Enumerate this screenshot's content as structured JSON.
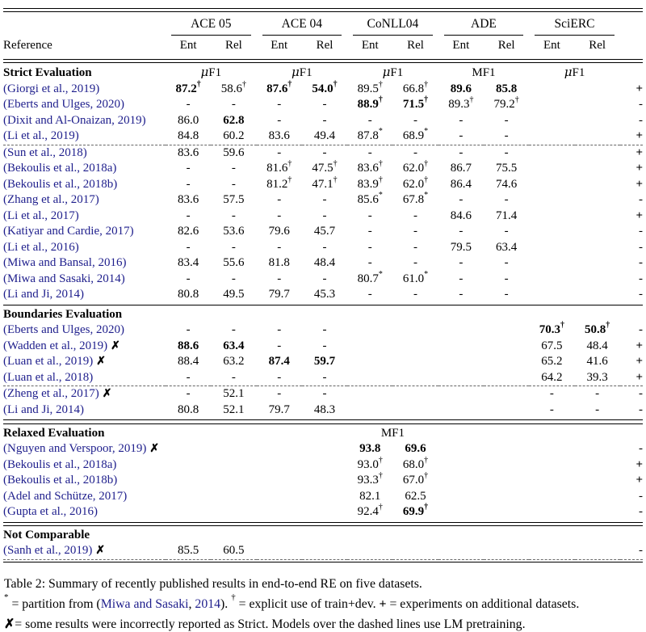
{
  "colors": {
    "citation_blue": "#1e1e8c",
    "dash_gray": "#666666",
    "rule_black": "#000000",
    "background": "#ffffff"
  },
  "table": {
    "header": {
      "reference_label": "Reference",
      "groups": [
        "ACE 05",
        "ACE 04",
        "CoNLL04",
        "ADE",
        "SciERC"
      ],
      "subcols": [
        "Ent",
        "Rel"
      ]
    },
    "sections": [
      {
        "title": "Strict Evaluation",
        "f1_labels": [
          "μF1",
          "μF1",
          "μF1",
          "MF1",
          "μF1"
        ],
        "dashed_after": 3,
        "rule_after": "single",
        "rows": [
          {
            "ref": "(Giorgi et al., 2019)",
            "x": false,
            "c": [
              "!87.2^†",
              "58.6^†",
              "!87.6^†",
              "!54.0^†",
              "89.5^†",
              "66.8^†",
              "!89.6",
              "!85.8",
              "",
              ""
            ],
            "s": "+"
          },
          {
            "ref": "(Eberts and Ulges, 2020)",
            "x": false,
            "c": [
              "-",
              "-",
              "-",
              "-",
              "!88.9^†",
              "!71.5^†",
              "89.3^†",
              "79.2^†",
              "",
              ""
            ],
            "s": "-"
          },
          {
            "ref": "(Dixit and Al-Onaizan, 2019)",
            "x": false,
            "c": [
              "86.0",
              "!62.8",
              "-",
              "-",
              "-",
              "-",
              "-",
              "-",
              "",
              ""
            ],
            "s": "-"
          },
          {
            "ref": "(Li et al., 2019)",
            "x": false,
            "c": [
              "84.8",
              "60.2",
              "83.6",
              "49.4",
              "87.8^*",
              "68.9^*",
              "-",
              "-",
              "",
              ""
            ],
            "s": "+"
          },
          {
            "ref": "(Sun et al., 2018)",
            "x": false,
            "c": [
              "83.6",
              "59.6",
              "-",
              "-",
              "-",
              "-",
              "-",
              "-",
              "",
              ""
            ],
            "s": "+"
          },
          {
            "ref": "(Bekoulis et al., 2018a)",
            "x": false,
            "c": [
              "-",
              "-",
              "81.6^†",
              "47.5^†",
              "83.6^†",
              "62.0^†",
              "86.7",
              "75.5",
              "",
              ""
            ],
            "s": "+"
          },
          {
            "ref": "(Bekoulis et al., 2018b)",
            "x": false,
            "c": [
              "-",
              "-",
              "81.2^†",
              "47.1^†",
              "83.9^†",
              "62.0^†",
              "86.4",
              "74.6",
              "",
              ""
            ],
            "s": "+"
          },
          {
            "ref": "(Zhang et al., 2017)",
            "x": false,
            "c": [
              "83.6",
              "57.5",
              "-",
              "-",
              "85.6^*",
              "67.8^*",
              "-",
              "-",
              "",
              ""
            ],
            "s": "-"
          },
          {
            "ref": "(Li et al., 2017)",
            "x": false,
            "c": [
              "-",
              "-",
              "-",
              "-",
              "-",
              "-",
              "84.6",
              "71.4",
              "",
              ""
            ],
            "s": "+"
          },
          {
            "ref": "(Katiyar and Cardie, 2017)",
            "x": false,
            "c": [
              "82.6",
              "53.6",
              "79.6",
              "45.7",
              "-",
              "-",
              "-",
              "-",
              "",
              ""
            ],
            "s": "-"
          },
          {
            "ref": "(Li et al., 2016)",
            "x": false,
            "c": [
              "-",
              "-",
              "-",
              "-",
              "-",
              "-",
              "79.5",
              "63.4",
              "",
              ""
            ],
            "s": "-"
          },
          {
            "ref": "(Miwa and Bansal, 2016)",
            "x": false,
            "c": [
              "83.4",
              "55.6",
              "81.8",
              "48.4",
              "-",
              "-",
              "-",
              "-",
              "",
              ""
            ],
            "s": "-"
          },
          {
            "ref": "(Miwa and Sasaki, 2014)",
            "x": false,
            "c": [
              "-",
              "-",
              "-",
              "-",
              "80.7^*",
              "61.0^*",
              "-",
              "-",
              "",
              ""
            ],
            "s": "-"
          },
          {
            "ref": "(Li and Ji, 2014)",
            "x": false,
            "c": [
              "80.8",
              "49.5",
              "79.7",
              "45.3",
              "-",
              "-",
              "-",
              "-",
              "",
              ""
            ],
            "s": "-"
          }
        ]
      },
      {
        "title": "Boundaries Evaluation",
        "f1_labels": [
          "",
          "",
          "",
          "",
          ""
        ],
        "dashed_after": 3,
        "rule_after": "double",
        "rows": [
          {
            "ref": "(Eberts and Ulges, 2020)",
            "x": false,
            "c": [
              "-",
              "-",
              "-",
              "-",
              "",
              "",
              "",
              "",
              "!70.3^†",
              "!50.8^†"
            ],
            "s": "-"
          },
          {
            "ref": "(Wadden et al., 2019)",
            "x": true,
            "c": [
              "!88.6",
              "!63.4",
              "-",
              "-",
              "",
              "",
              "",
              "",
              "67.5",
              "48.4"
            ],
            "s": "+"
          },
          {
            "ref": "(Luan et al., 2019)",
            "x": true,
            "c": [
              "88.4",
              "63.2",
              "!87.4",
              "!59.7",
              "",
              "",
              "",
              "",
              "65.2",
              "41.6"
            ],
            "s": "+"
          },
          {
            "ref": "(Luan et al., 2018)",
            "x": false,
            "c": [
              "-",
              "-",
              "-",
              "-",
              "",
              "",
              "",
              "",
              "64.2",
              "39.3"
            ],
            "s": "+"
          },
          {
            "ref": "(Zheng et al., 2017)",
            "x": true,
            "c": [
              "-",
              "52.1",
              "-",
              "-",
              "",
              "",
              "",
              "",
              "-",
              "-"
            ],
            "s": "-"
          },
          {
            "ref": "(Li and Ji, 2014)",
            "x": false,
            "c": [
              "80.8",
              "52.1",
              "79.7",
              "48.3",
              "",
              "",
              "",
              "",
              "-",
              "-"
            ],
            "s": "-"
          }
        ]
      },
      {
        "title": "Relaxed Evaluation",
        "f1_labels": [
          "",
          "",
          "MF1",
          "",
          ""
        ],
        "dashed_after": -1,
        "rule_after": "double",
        "rows": [
          {
            "ref": "(Nguyen and Verspoor, 2019)",
            "x": true,
            "c": [
              "",
              "",
              "",
              "",
              "!93.8",
              "!69.6",
              "",
              "",
              "",
              ""
            ],
            "s": "-"
          },
          {
            "ref": "(Bekoulis et al., 2018a)",
            "x": false,
            "c": [
              "",
              "",
              "",
              "",
              "93.0^†",
              "68.0^†",
              "",
              "",
              "",
              ""
            ],
            "s": "+"
          },
          {
            "ref": "(Bekoulis et al., 2018b)",
            "x": false,
            "c": [
              "",
              "",
              "",
              "",
              "93.3^†",
              "67.0^†",
              "",
              "",
              "",
              ""
            ],
            "s": "+"
          },
          {
            "ref": "(Adel and Schütze, 2017)",
            "x": false,
            "c": [
              "",
              "",
              "",
              "",
              "82.1",
              "62.5",
              "",
              "",
              "",
              ""
            ],
            "s": "-"
          },
          {
            "ref": "(Gupta et al., 2016)",
            "x": false,
            "c": [
              "",
              "",
              "",
              "",
              "92.4^†",
              "!69.9^†",
              "",
              "",
              "",
              ""
            ],
            "s": "-"
          }
        ]
      },
      {
        "title": "Not Comparable",
        "f1_labels": [
          "",
          "",
          "",
          "",
          ""
        ],
        "dashed_after": 0,
        "rule_after": "single",
        "rows": [
          {
            "ref": "(Sanh et al., 2019)",
            "x": true,
            "c": [
              "85.5",
              "60.5",
              "",
              "",
              "",
              "",
              "",
              "",
              "",
              ""
            ],
            "s": "-"
          }
        ]
      }
    ]
  },
  "caption": {
    "lines": [
      [
        {
          "t": "Table 2: Summary of recently published results in end-to-end RE on five datasets."
        }
      ],
      [
        {
          "t": "*",
          "sup": true
        },
        {
          "t": " = partition from ("
        },
        {
          "t": "Miwa and Sasaki",
          "cite": true
        },
        {
          "t": ", "
        },
        {
          "t": "2014",
          "cite": true
        },
        {
          "t": "). "
        },
        {
          "t": "†",
          "sup": true
        },
        {
          "t": " = explicit use of train+dev. "
        },
        {
          "t": "+",
          "bold": true
        },
        {
          "t": " = experiments on additional datasets."
        }
      ],
      [
        {
          "t": "✗",
          "bold": true
        },
        {
          "t": "= some results were incorrectly reported as Strict. Models over the dashed lines use LM pretraining."
        }
      ]
    ]
  }
}
